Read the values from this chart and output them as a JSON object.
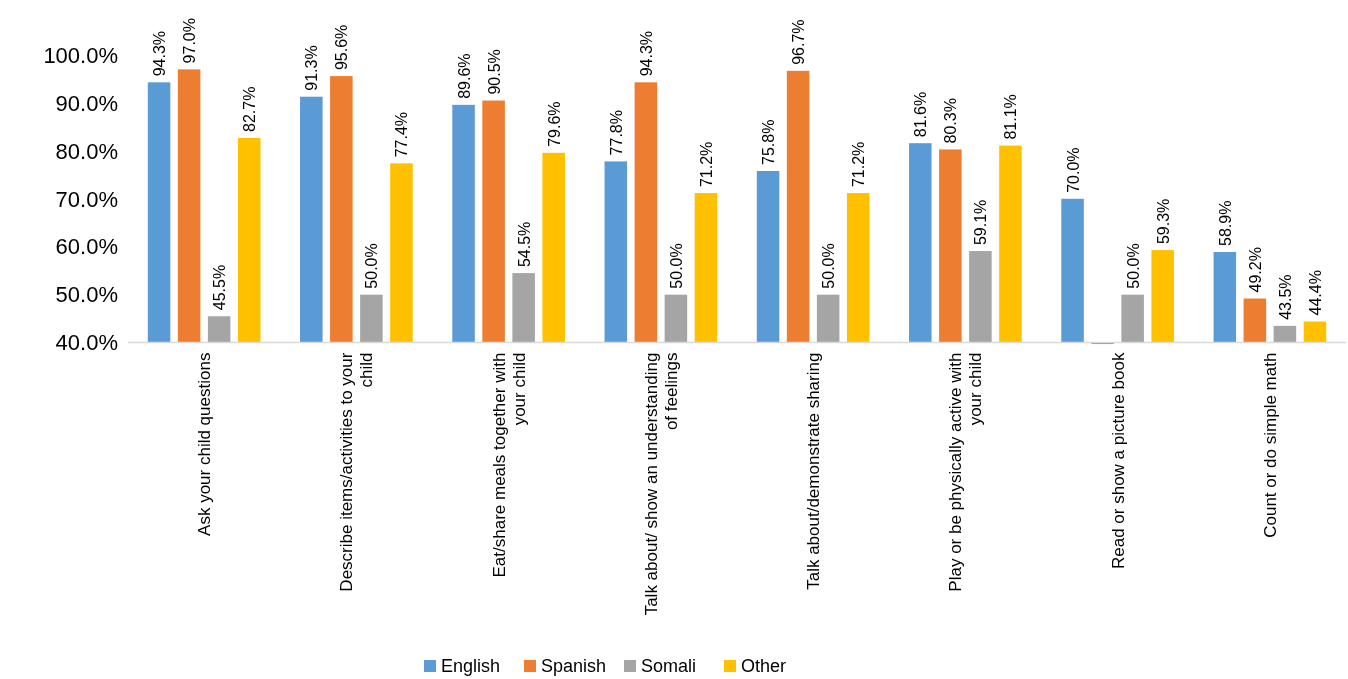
{
  "chart_data": {
    "type": "bar",
    "categories": [
      "Ask your child questions",
      "Describe items/activities to your child",
      "Eat/share meals together with your child",
      "Talk about/ show an understanding of feelings",
      "Talk about/demonstrate sharing",
      "Play or be physically active with your child",
      "Read or show a picture book",
      "Count or do simple math"
    ],
    "series": [
      {
        "name": "English",
        "color": "#5b9bd5",
        "values": [
          94.3,
          91.3,
          89.6,
          77.8,
          75.8,
          81.6,
          70.0,
          58.9
        ],
        "value_labels": [
          "94.3%",
          "91.3%",
          "89.6%",
          "77.8%",
          "75.8%",
          "81.6%",
          "70.0%",
          "58.9%"
        ]
      },
      {
        "name": "Spanish",
        "color": "#ed7d31",
        "values": [
          97.0,
          95.6,
          90.5,
          94.3,
          96.7,
          80.3,
          39.7,
          49.2
        ],
        "value_labels": [
          "97.0%",
          "95.6%",
          "90.5%",
          "94.3%",
          "96.7%",
          "80.3%",
          null,
          "49.2%"
        ]
      },
      {
        "name": "Somali",
        "color": "#a5a5a5",
        "values": [
          45.5,
          50.0,
          54.5,
          50.0,
          50.0,
          59.1,
          50.0,
          43.5
        ],
        "value_labels": [
          "45.5%",
          "50.0%",
          "54.5%",
          "50.0%",
          "50.0%",
          "59.1%",
          "50.0%",
          "43.5%"
        ]
      },
      {
        "name": "Other",
        "color": "#ffc000",
        "values": [
          82.7,
          77.4,
          79.6,
          71.2,
          71.2,
          81.1,
          59.3,
          44.4
        ],
        "value_labels": [
          "82.7%",
          "77.4%",
          "79.6%",
          "71.2%",
          "71.2%",
          "81.1%",
          "59.3%",
          "44.4%"
        ]
      }
    ],
    "ylim": [
      39.5,
      100
    ],
    "yticks": [
      {
        "value": 40,
        "label": "40.0%"
      },
      {
        "value": 50,
        "label": "50.0%"
      },
      {
        "value": 60,
        "label": "60.0%"
      },
      {
        "value": 70,
        "label": "70.0%"
      },
      {
        "value": 80,
        "label": "80.0%"
      },
      {
        "value": 90,
        "label": "90.0%"
      },
      {
        "value": 100,
        "label": "100.0%"
      }
    ],
    "legend": "bottom"
  }
}
